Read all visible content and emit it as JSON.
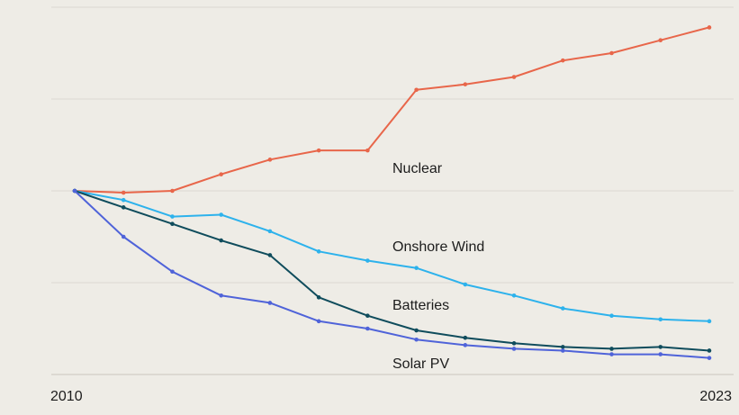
{
  "chart_data": {
    "type": "line",
    "title": "",
    "xlabel": "",
    "ylabel": "",
    "x": [
      2010,
      2011,
      2012,
      2013,
      2014,
      2015,
      2016,
      2017,
      2018,
      2019,
      2020,
      2021,
      2022,
      2023
    ],
    "x_tick_labels": [
      "2010",
      "2023"
    ],
    "ylim": [
      0,
      200
    ],
    "grid": true,
    "legend": "inline",
    "series": [
      {
        "name": "Nuclear",
        "color": "#e8664a",
        "values": [
          100,
          99,
          100,
          109,
          117,
          122,
          122,
          155,
          158,
          162,
          171,
          175,
          182,
          189
        ]
      },
      {
        "name": "Onshore Wind",
        "color": "#2db2ec",
        "values": [
          100,
          95,
          86,
          87,
          78,
          67,
          62,
          58,
          49,
          43,
          36,
          32,
          30,
          29
        ]
      },
      {
        "name": "Batteries",
        "color": "#0f4c5c",
        "values": [
          100,
          91,
          82,
          73,
          65,
          42,
          32,
          24,
          20,
          17,
          15,
          14,
          15,
          13
        ]
      },
      {
        "name": "Solar PV",
        "color": "#4f63d9",
        "values": [
          100,
          75,
          56,
          43,
          39,
          29,
          25,
          19,
          16,
          14,
          13,
          11,
          11,
          9
        ]
      }
    ]
  }
}
